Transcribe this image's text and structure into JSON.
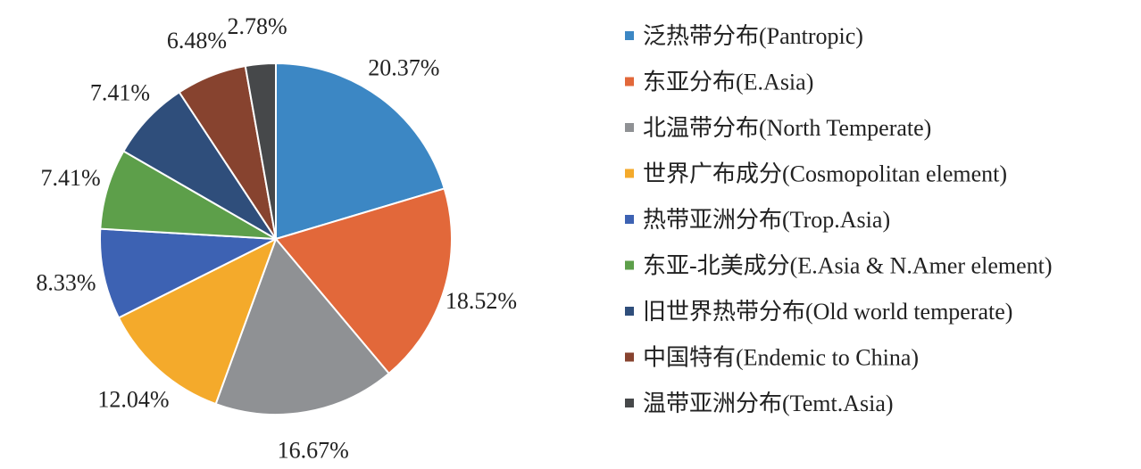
{
  "chart_data": {
    "type": "pie",
    "title": "",
    "legend_position": "right",
    "start_angle_deg": 0,
    "direction": "clockwise",
    "slices": [
      {
        "label": "泛热带分布(Pantropic)",
        "value": 20.37,
        "value_label": "20.37%",
        "color": "#3c87c4"
      },
      {
        "label": "东亚分布(E.Asia)",
        "value": 18.52,
        "value_label": "18.52%",
        "color": "#e2683a"
      },
      {
        "label": "北温带分布(North Temperate)",
        "value": 16.67,
        "value_label": "16.67%",
        "color": "#8f9194"
      },
      {
        "label": "世界广布成分(Cosmopolitan element)",
        "value": 12.04,
        "value_label": "12.04%",
        "color": "#f4aa2b"
      },
      {
        "label": "热带亚洲分布(Trop.Asia)",
        "value": 8.33,
        "value_label": "8.33%",
        "color": "#3d62b3"
      },
      {
        "label": "东亚-北美成分(E.Asia & N.Amer element)",
        "value": 7.41,
        "value_label": "7.41%",
        "color": "#5d9f4a"
      },
      {
        "label": "旧世界热带分布(Old world temperate)",
        "value": 7.41,
        "value_label": "7.41%",
        "color": "#2f4e7b"
      },
      {
        "label": "中国特有(Endemic to China)",
        "value": 6.48,
        "value_label": "6.48%",
        "color": "#87432f"
      },
      {
        "label": "温带亚洲分布(Temt.Asia)",
        "value": 2.78,
        "value_label": "2.78%",
        "color": "#46484a"
      }
    ]
  }
}
